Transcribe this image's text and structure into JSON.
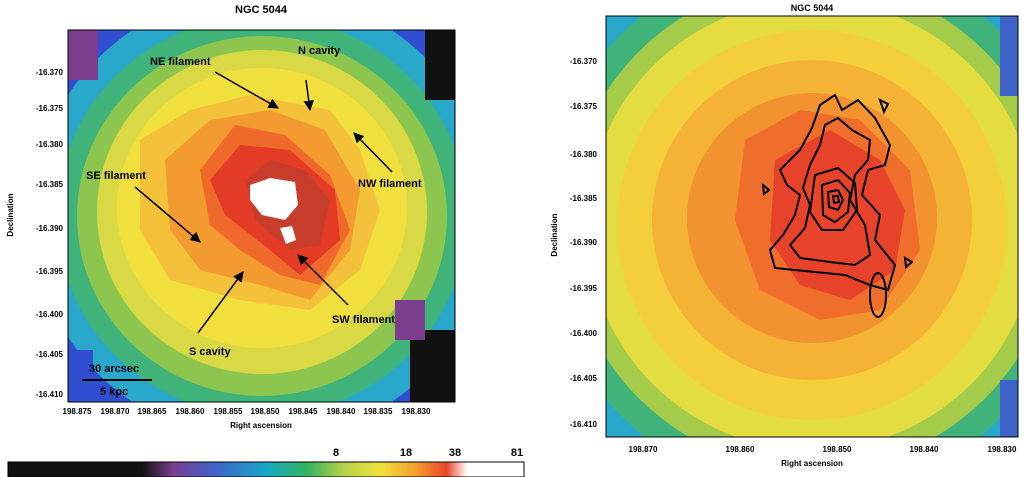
{
  "left_panel": {
    "title": "NGC 5044",
    "xlabel": "Right ascension",
    "ylabel": "Declination",
    "xticks": [
      "198.875",
      "198.870",
      "198.865",
      "198.860",
      "198.855",
      "198.850",
      "198.845",
      "198.840",
      "198.835",
      "198.830"
    ],
    "yticks": [
      "-16.370",
      "-16.375",
      "-16.380",
      "-16.385",
      "-16.390",
      "-16.395",
      "-16.400",
      "-16.405",
      "-16.410"
    ],
    "annotations": {
      "ne": "NE filament",
      "n": "N cavity",
      "nw": "NW filament",
      "se": "SE filament",
      "sw": "SW filament",
      "s": "S cavity"
    },
    "scalebar_top": "30 arcsec",
    "scalebar_bottom": "5 kpc"
  },
  "colorbar": {
    "ticks": [
      "8",
      "18",
      "38",
      "81"
    ],
    "colors": [
      "#111111",
      "#7b3e8e",
      "#3f62c8",
      "#18a8c8",
      "#32b45c",
      "#b6d24a",
      "#f0e23e",
      "#f3a02e",
      "#e9452a",
      "#ffffff"
    ]
  },
  "right_panel": {
    "title": "NGC 5044",
    "xlabel": "Right ascension",
    "ylabel": "Declination",
    "xticks": [
      "198.870",
      "198.860",
      "198.850",
      "198.840",
      "198.830"
    ],
    "yticks": [
      "-16.370",
      "-16.375",
      "-16.380",
      "-16.385",
      "-16.390",
      "-16.395",
      "-16.400",
      "-16.405",
      "-16.410"
    ]
  }
}
